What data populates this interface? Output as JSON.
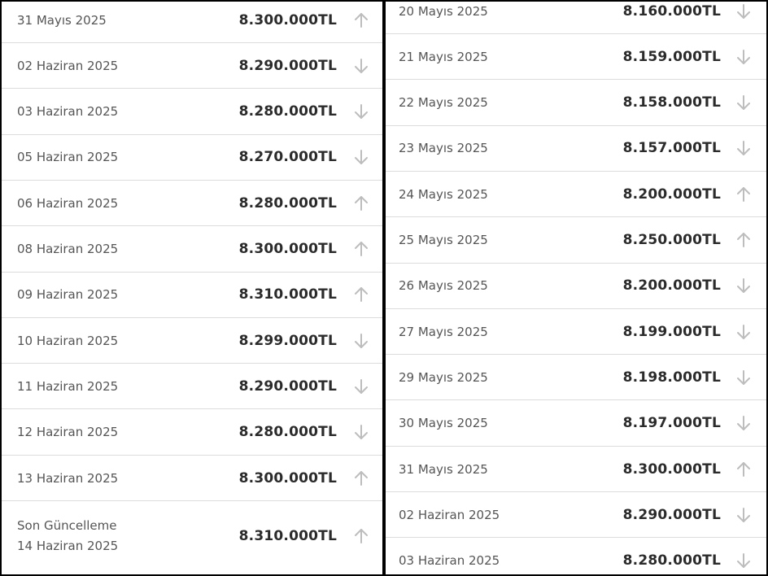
{
  "colors": {
    "arrow": "#bdbdbd",
    "divider": "#dcdcdc",
    "price_text": "#2b2b2b",
    "date_text": "#555555"
  },
  "left_list": [
    {
      "date": "31 Mayıs 2025",
      "price": "8.300.000TL",
      "trend": "up"
    },
    {
      "date": "02 Haziran 2025",
      "price": "8.290.000TL",
      "trend": "down"
    },
    {
      "date": "03 Haziran 2025",
      "price": "8.280.000TL",
      "trend": "down"
    },
    {
      "date": "05 Haziran 2025",
      "price": "8.270.000TL",
      "trend": "down"
    },
    {
      "date": "06 Haziran 2025",
      "price": "8.280.000TL",
      "trend": "up"
    },
    {
      "date": "08 Haziran 2025",
      "price": "8.300.000TL",
      "trend": "up"
    },
    {
      "date": "09 Haziran 2025",
      "price": "8.310.000TL",
      "trend": "up"
    },
    {
      "date": "10 Haziran 2025",
      "price": "8.299.000TL",
      "trend": "down"
    },
    {
      "date": "11 Haziran 2025",
      "price": "8.290.000TL",
      "trend": "down"
    },
    {
      "date": "12 Haziran 2025",
      "price": "8.280.000TL",
      "trend": "down"
    },
    {
      "date": "13 Haziran 2025",
      "price": "8.300.000TL",
      "trend": "up"
    }
  ],
  "latest": {
    "label": "Son Güncelleme",
    "date": "14 Haziran 2025",
    "price": "8.310.000TL",
    "trend": "up"
  },
  "right_list": [
    {
      "date": "20 Mayıs 2025",
      "price": "8.160.000TL",
      "trend": "down"
    },
    {
      "date": "21 Mayıs 2025",
      "price": "8.159.000TL",
      "trend": "down"
    },
    {
      "date": "22 Mayıs 2025",
      "price": "8.158.000TL",
      "trend": "down"
    },
    {
      "date": "23 Mayıs 2025",
      "price": "8.157.000TL",
      "trend": "down"
    },
    {
      "date": "24 Mayıs 2025",
      "price": "8.200.000TL",
      "trend": "up"
    },
    {
      "date": "25 Mayıs 2025",
      "price": "8.250.000TL",
      "trend": "up"
    },
    {
      "date": "26 Mayıs 2025",
      "price": "8.200.000TL",
      "trend": "down"
    },
    {
      "date": "27 Mayıs 2025",
      "price": "8.199.000TL",
      "trend": "down"
    },
    {
      "date": "29 Mayıs 2025",
      "price": "8.198.000TL",
      "trend": "down"
    },
    {
      "date": "30 Mayıs 2025",
      "price": "8.197.000TL",
      "trend": "down"
    },
    {
      "date": "31 Mayıs 2025",
      "price": "8.300.000TL",
      "trend": "up"
    },
    {
      "date": "02 Haziran 2025",
      "price": "8.290.000TL",
      "trend": "down"
    },
    {
      "date": "03 Haziran 2025",
      "price": "8.280.000TL",
      "trend": "down"
    }
  ]
}
